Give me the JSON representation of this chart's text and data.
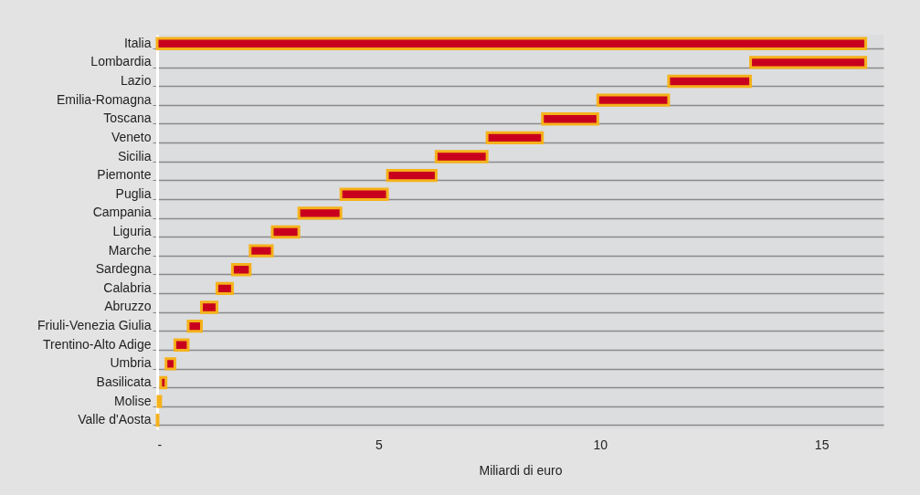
{
  "chart_data": {
    "type": "bar",
    "orientation": "horizontal",
    "xlabel": "Miliardi di euro",
    "categories": [
      "Italia",
      "Lombardia",
      "Lazio",
      "Emilia-Romagna",
      "Toscana",
      "Veneto",
      "Sicilia",
      "Piemonte",
      "Puglia",
      "Campania",
      "Liguria",
      "Marche",
      "Sardegna",
      "Calabria",
      "Abruzzo",
      "Friuli-Venezia Giulia",
      "Trentino-Alto Adige",
      "Umbria",
      "Basilicata",
      "Molise",
      "Valle d'Aosta"
    ],
    "base": [
      0,
      13.4,
      11.55,
      9.95,
      8.7,
      7.45,
      6.3,
      5.2,
      4.15,
      3.2,
      2.6,
      2.1,
      1.7,
      1.35,
      1.0,
      0.7,
      0.4,
      0.2,
      0.08,
      0.02,
      0
    ],
    "values": [
      16,
      2.6,
      1.85,
      1.6,
      1.25,
      1.25,
      1.15,
      1.1,
      1.05,
      0.95,
      0.6,
      0.5,
      0.4,
      0.35,
      0.35,
      0.3,
      0.3,
      0.2,
      0.12,
      0.06,
      0.02
    ],
    "color": "#c8001e",
    "xlim": [
      0,
      16.4
    ],
    "xticks": [
      {
        "value": 0,
        "label": "-"
      },
      5,
      10,
      15
    ],
    "grid": "y"
  }
}
